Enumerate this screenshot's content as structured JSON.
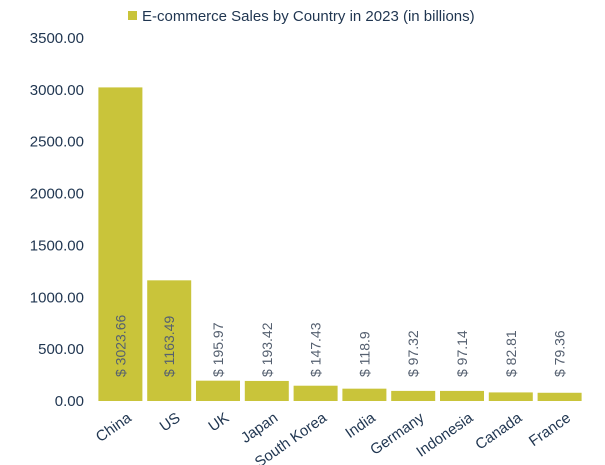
{
  "chart_data": {
    "type": "bar",
    "legend": {
      "label": "E-commerce Sales by Country in 2023 (in billions)",
      "position": "top-center"
    },
    "categories": [
      "China",
      "US",
      "UK",
      "Japan",
      "South Korea",
      "India",
      "Germany",
      "Indonesia",
      "Canada",
      "France"
    ],
    "series": [
      {
        "name": "E-commerce Sales by Country in 2023 (in billions)",
        "values": [
          3023.66,
          1163.49,
          195.97,
          193.42,
          147.43,
          118.9,
          97.32,
          97.14,
          82.81,
          79.36
        ],
        "data_labels": [
          "$ 3023.66",
          "$ 1163.49",
          "$ 195.97",
          "$ 193.42",
          "$ 147.43",
          "$ 118.9",
          "$ 97.32",
          "$ 97.14",
          "$ 82.81",
          "$ 79.36"
        ]
      }
    ],
    "ylim": [
      0,
      3500
    ],
    "yticks": [
      "0.00",
      "500.00",
      "1000.00",
      "1500.00",
      "2000.00",
      "2500.00",
      "3000.00",
      "3500.00"
    ],
    "grid": false,
    "xlabel": "",
    "ylabel": "",
    "colors": {
      "bar": "#c9c43a",
      "text": "#1f3550",
      "data_label": "#556070"
    }
  }
}
